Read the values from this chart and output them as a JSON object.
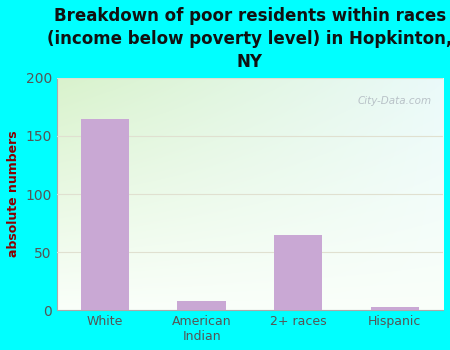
{
  "title": "Breakdown of poor residents within races\n(income below poverty level) in Hopkinton,\nNY",
  "categories": [
    "White",
    "American\nIndian",
    "2+ races",
    "Hispanic"
  ],
  "values": [
    165,
    8,
    65,
    3
  ],
  "bar_color": "#c9a8d4",
  "ylabel": "absolute numbers",
  "ylim": [
    0,
    200
  ],
  "yticks": [
    0,
    50,
    100,
    150,
    200
  ],
  "bg_outer": "#00ffff",
  "bg_plot_color1": "#d8eecc",
  "bg_plot_color2": "#eef8f8",
  "title_color": "#111111",
  "ylabel_color": "#8b0000",
  "watermark": "City-Data.com",
  "title_fontsize": 12,
  "ylabel_fontsize": 9,
  "grid_color": "#e0e0d0",
  "spine_color": "#aaaaaa"
}
